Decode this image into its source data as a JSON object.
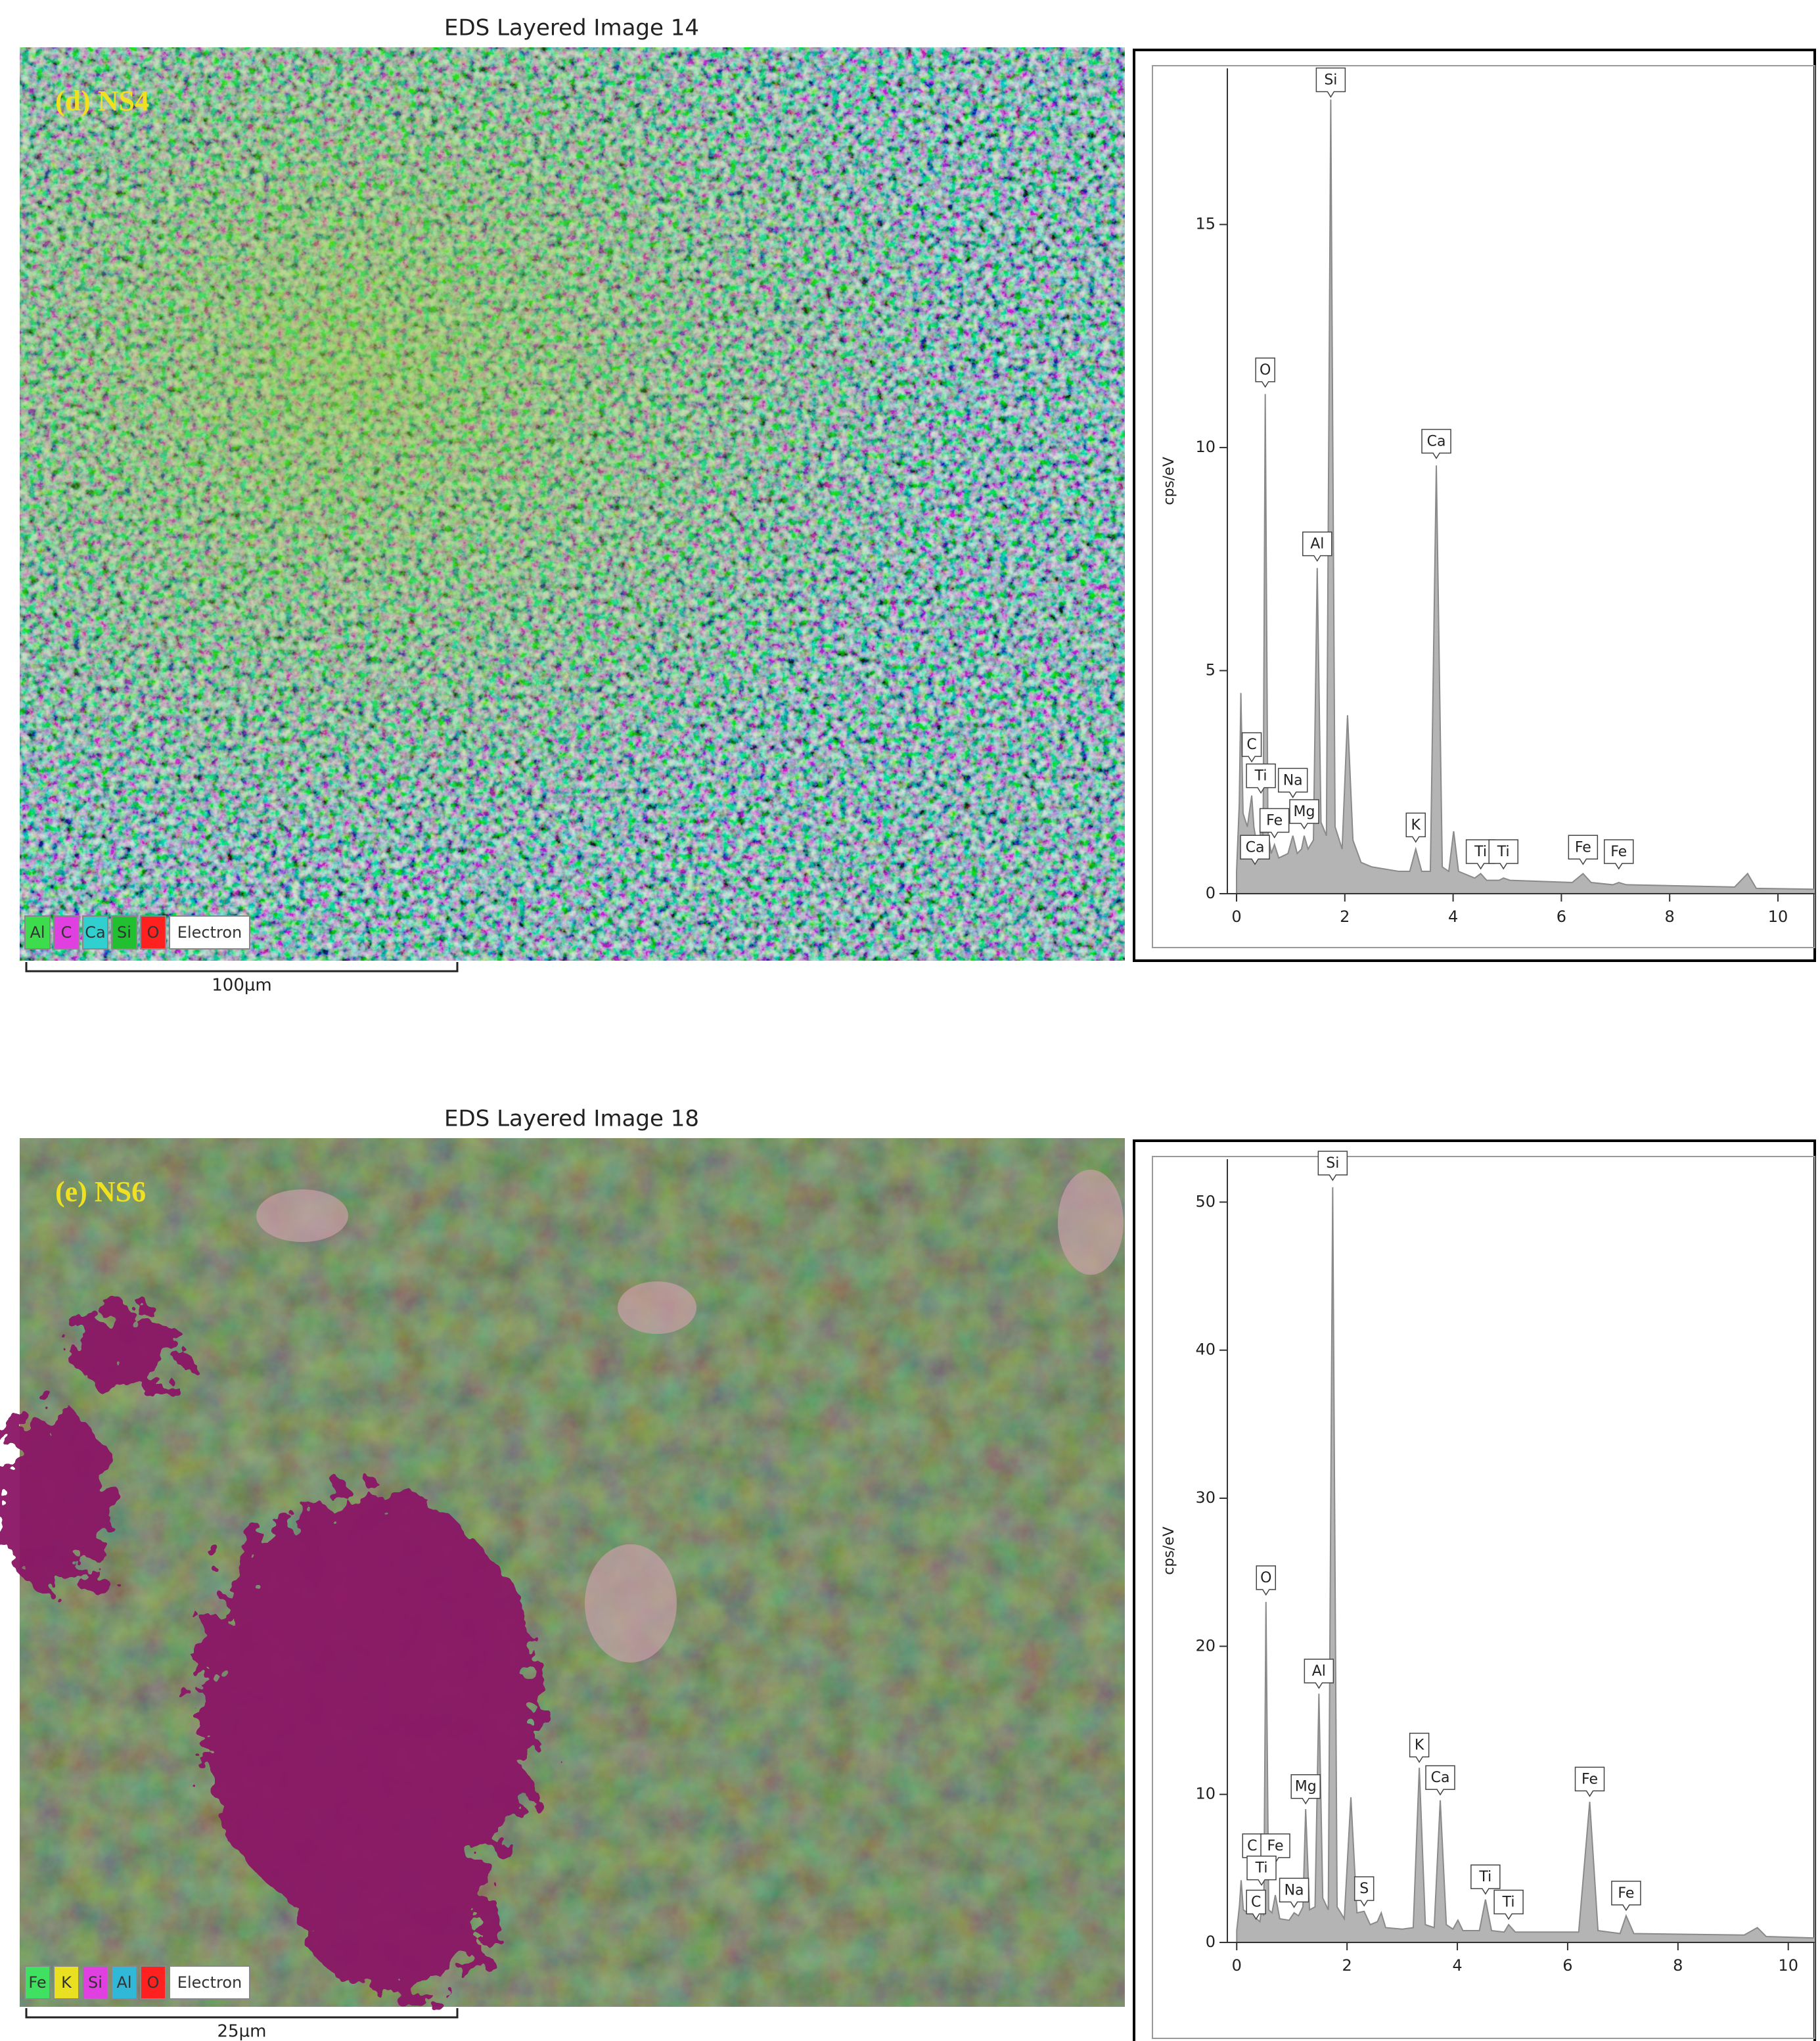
{
  "panels": [
    {
      "title": "EDS Layered Image 14",
      "label": "(d) NS4",
      "scale_bar": "100µm",
      "legend": [
        {
          "label": "Al",
          "color": "#3ddc4c"
        },
        {
          "label": "C",
          "color": "#e040e0"
        },
        {
          "label": "Ca",
          "color": "#30d0d0"
        },
        {
          "label": "Si",
          "color": "#20c030"
        },
        {
          "label": "O",
          "color": "#ff2020"
        },
        {
          "label": "Electron",
          "color": "#ffffff"
        }
      ]
    },
    {
      "title": "EDS Layered Image 18",
      "label": "(e) NS6",
      "scale_bar": "25µm",
      "legend": [
        {
          "label": "Fe",
          "color": "#40e060"
        },
        {
          "label": "K",
          "color": "#e8e020"
        },
        {
          "label": "Si",
          "color": "#e040e0"
        },
        {
          "label": "Al",
          "color": "#30b8d8"
        },
        {
          "label": "O",
          "color": "#ff2020"
        },
        {
          "label": "Electron",
          "color": "#ffffff"
        }
      ]
    }
  ],
  "chart_data": [
    {
      "type": "area",
      "y_label": "cps/eV",
      "color": "#b4b4b4",
      "x": [
        0,
        0.05,
        0.08,
        0.12,
        0.2,
        0.28,
        0.32,
        0.36,
        0.42,
        0.45,
        0.49,
        0.53,
        0.58,
        0.64,
        0.7,
        0.78,
        0.95,
        1.04,
        1.12,
        1.2,
        1.25,
        1.32,
        1.42,
        1.49,
        1.56,
        1.66,
        1.74,
        1.82,
        1.95,
        2.05,
        2.15,
        2.3,
        2.5,
        3.0,
        3.2,
        3.31,
        3.42,
        3.58,
        3.69,
        3.8,
        3.92,
        4.01,
        4.1,
        4.4,
        4.51,
        4.62,
        4.85,
        4.93,
        5.05,
        6.2,
        6.4,
        6.55,
        6.95,
        7.06,
        7.2,
        9.2,
        9.44,
        9.6,
        10.68
      ],
      "values": [
        0.5,
        2.0,
        4.5,
        1.8,
        1.5,
        2.2,
        1.5,
        1.2,
        1.0,
        1.6,
        1.2,
        11.2,
        1.4,
        0.9,
        1.1,
        0.8,
        0.9,
        1.3,
        0.9,
        1.0,
        1.3,
        1.0,
        1.2,
        7.3,
        1.6,
        1.3,
        17.8,
        1.5,
        1.0,
        4.0,
        1.2,
        0.7,
        0.6,
        0.5,
        0.5,
        1.0,
        0.5,
        0.5,
        9.6,
        0.6,
        0.5,
        1.4,
        0.5,
        0.35,
        0.45,
        0.3,
        0.3,
        0.35,
        0.3,
        0.25,
        0.45,
        0.25,
        0.2,
        0.25,
        0.2,
        0.15,
        0.45,
        0.12,
        0.1
      ],
      "xlim": [
        -0.17,
        10.68
      ],
      "ylim": [
        0,
        18.5
      ],
      "xticks": [
        0,
        2,
        4,
        6,
        8,
        10
      ],
      "yticks": [
        0,
        5,
        10,
        15
      ],
      "annotations": [
        {
          "label": "Si",
          "x": 1.74,
          "y": 17.8
        },
        {
          "label": "O",
          "x": 0.53,
          "y": 11.3
        },
        {
          "label": "Ca",
          "x": 3.69,
          "y": 9.7
        },
        {
          "label": "Al",
          "x": 1.49,
          "y": 7.4
        },
        {
          "label": "C",
          "x": 0.28,
          "y": 2.9
        },
        {
          "label": "Ti",
          "x": 0.45,
          "y": 2.2
        },
        {
          "label": "Na",
          "x": 1.04,
          "y": 2.1
        },
        {
          "label": "Fe",
          "x": 0.7,
          "y": 1.2
        },
        {
          "label": "Mg",
          "x": 1.25,
          "y": 1.4
        },
        {
          "label": "Ca",
          "x": 0.34,
          "y": 0.6
        },
        {
          "label": "K",
          "x": 3.31,
          "y": 1.1
        },
        {
          "label": "Ti",
          "x": 4.51,
          "y": 0.5
        },
        {
          "label": "Ti",
          "x": 4.93,
          "y": 0.5
        },
        {
          "label": "Fe",
          "x": 6.4,
          "y": 0.6
        },
        {
          "label": "Fe",
          "x": 7.06,
          "y": 0.5
        }
      ]
    },
    {
      "type": "area",
      "y_label": "cps/eV",
      "color": "#b4b4b4",
      "x": [
        0,
        0.05,
        0.08,
        0.12,
        0.2,
        0.28,
        0.32,
        0.36,
        0.42,
        0.45,
        0.49,
        0.53,
        0.58,
        0.64,
        0.7,
        0.78,
        0.95,
        1.04,
        1.12,
        1.2,
        1.25,
        1.32,
        1.42,
        1.49,
        1.56,
        1.66,
        1.74,
        1.82,
        1.95,
        2.07,
        2.18,
        2.31,
        2.42,
        2.55,
        2.62,
        2.7,
        3.0,
        3.2,
        3.31,
        3.42,
        3.58,
        3.69,
        3.8,
        3.92,
        4.01,
        4.1,
        4.4,
        4.51,
        4.62,
        4.85,
        4.93,
        5.05,
        6.2,
        6.4,
        6.55,
        6.95,
        7.06,
        7.2,
        9.2,
        9.44,
        9.6,
        10.48
      ],
      "values": [
        0.8,
        2.5,
        4.2,
        2.2,
        2.0,
        3.0,
        2.0,
        1.6,
        1.4,
        2.2,
        1.8,
        23.0,
        2.2,
        2.0,
        3.2,
        1.6,
        1.5,
        2.0,
        1.8,
        2.4,
        9.0,
        2.2,
        2.4,
        16.8,
        3.0,
        2.2,
        51.0,
        2.4,
        1.6,
        9.8,
        2.0,
        2.1,
        1.2,
        1.4,
        2.0,
        1.0,
        0.9,
        1.0,
        11.8,
        1.2,
        1.0,
        9.6,
        1.2,
        0.9,
        1.5,
        0.8,
        0.8,
        2.9,
        0.8,
        0.7,
        1.2,
        0.7,
        0.7,
        9.5,
        0.8,
        0.6,
        1.8,
        0.6,
        0.5,
        1.0,
        0.4,
        0.3
      ],
      "xlim": [
        -0.17,
        10.48
      ],
      "ylim": [
        0,
        52.9
      ],
      "xticks": [
        0,
        2,
        4,
        6,
        8,
        10
      ],
      "yticks": [
        0,
        10,
        20,
        30,
        40,
        50
      ],
      "annotations": [
        {
          "label": "Si",
          "x": 1.74,
          "y": 51.3
        },
        {
          "label": "O",
          "x": 0.53,
          "y": 23.3
        },
        {
          "label": "Al",
          "x": 1.49,
          "y": 17
        },
        {
          "label": "K",
          "x": 3.31,
          "y": 12
        },
        {
          "label": "Ca",
          "x": 3.69,
          "y": 9.8
        },
        {
          "label": "Fe",
          "x": 6.4,
          "y": 9.7
        },
        {
          "label": "Mg",
          "x": 1.25,
          "y": 9.2
        },
        {
          "label": "C",
          "x": 0.28,
          "y": 5.2
        },
        {
          "label": "Fe",
          "x": 0.7,
          "y": 5.2
        },
        {
          "label": "Ti",
          "x": 0.45,
          "y": 3.7
        },
        {
          "label": "Na",
          "x": 1.04,
          "y": 2.2
        },
        {
          "label": "C",
          "x": 0.35,
          "y": 1.4
        },
        {
          "label": "S",
          "x": 2.31,
          "y": 2.3
        },
        {
          "label": "Ti",
          "x": 4.51,
          "y": 3.1
        },
        {
          "label": "Ti",
          "x": 4.93,
          "y": 1.4
        },
        {
          "label": "Fe",
          "x": 7.06,
          "y": 2.0
        }
      ]
    }
  ]
}
